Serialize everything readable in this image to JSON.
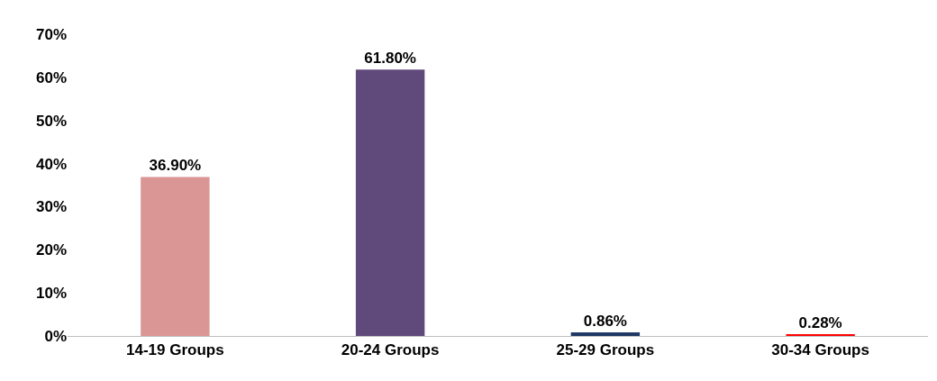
{
  "chart_data": {
    "type": "bar",
    "categories": [
      "14-19 Groups",
      "20-24 Groups",
      "25-29 Groups",
      "30-34 Groups"
    ],
    "values": [
      36.9,
      61.8,
      0.86,
      0.28
    ],
    "colors": [
      "#da9694",
      "#604a7b",
      "#1f3864",
      "#ff0000"
    ],
    "value_labels": [
      "36.90%",
      "61.80%",
      "0.86%",
      "0.28%"
    ],
    "ylim": [
      0,
      70
    ],
    "yticks": [
      {
        "value": 0,
        "label": "0%"
      },
      {
        "value": 10,
        "label": "10%"
      },
      {
        "value": 20,
        "label": "20%"
      },
      {
        "value": 30,
        "label": "30%"
      },
      {
        "value": 40,
        "label": "40%"
      },
      {
        "value": 50,
        "label": "50%"
      },
      {
        "value": 60,
        "label": "60%"
      },
      {
        "value": 70,
        "label": "70%"
      }
    ],
    "legend": false
  }
}
